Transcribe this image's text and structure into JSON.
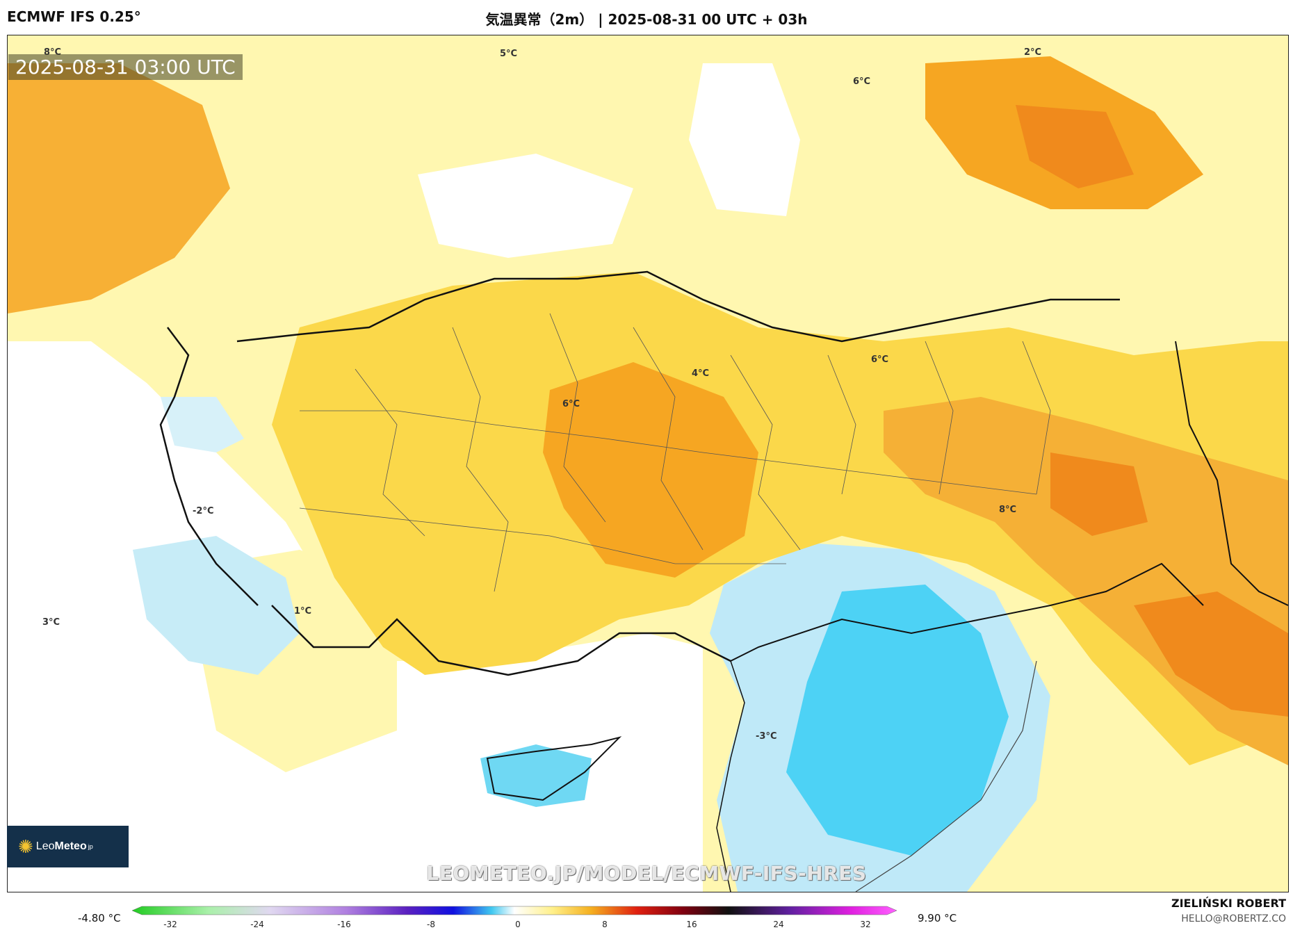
{
  "header": {
    "model": "ECMWF IFS 0.25°",
    "title": "気温異常（2m） | 2025-08-31 00 UTC + 03h"
  },
  "map": {
    "valid_time": "2025-08-31 03:00 UTC",
    "labels": [
      {
        "text": "8°C"
      },
      {
        "text": "5°C"
      },
      {
        "text": "2°C"
      },
      {
        "text": "6°C"
      },
      {
        "text": "6°C"
      },
      {
        "text": "4°C"
      },
      {
        "text": "6°C"
      },
      {
        "text": "-2°C"
      },
      {
        "text": "8°C"
      },
      {
        "text": "1°C"
      },
      {
        "text": "3°C"
      },
      {
        "text": "-3°C"
      }
    ],
    "watermark": "LEOMETEO.JP/MODEL/ECMWF-IFS-HRES",
    "logo": {
      "brand_light": "Leo",
      "brand_bold": "Meteo",
      "suffix": "jp"
    }
  },
  "colorbar": {
    "min_label": "-4.80 °C",
    "max_label": "9.90 °C",
    "ticks": [
      "-32",
      "-24",
      "-16",
      "-8",
      "0",
      "8",
      "16",
      "24",
      "32"
    ]
  },
  "credits": {
    "author": "ZIELIŃSKI ROBERT",
    "email": "HELLO@ROBERTZ.CO"
  }
}
